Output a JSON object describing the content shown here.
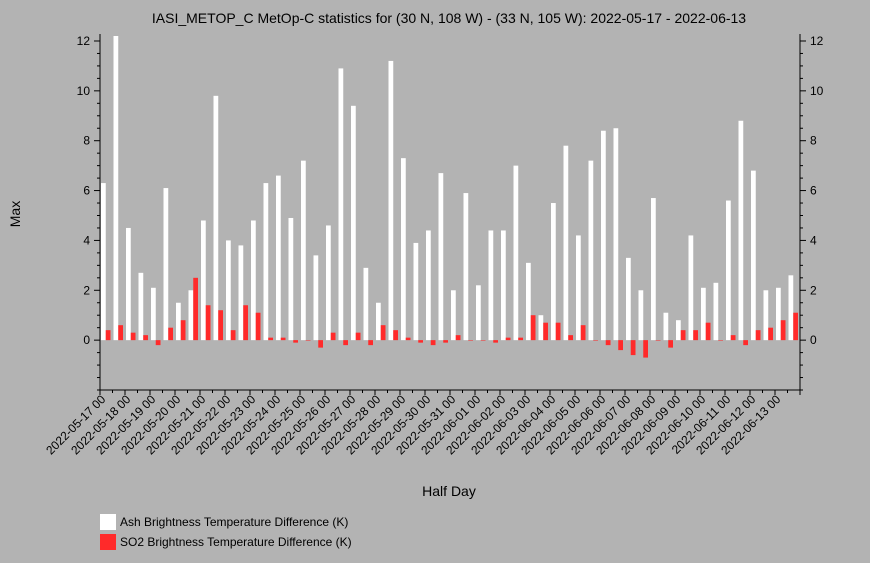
{
  "chart_data": {
    "type": "bar",
    "title": "IASI_METOP_C MetOp-C statistics for (30 N, 108 W) - (33 N, 105 W): 2022-05-17 - 2022-06-13",
    "xlabel": "Half Day",
    "ylabel": "Max",
    "ylim": [
      -2,
      12.2
    ],
    "y_ticks": [
      0,
      2,
      4,
      6,
      8,
      10,
      12
    ],
    "grid": false,
    "legend_position": "bottom-left",
    "x_tick_labels": [
      "2022-05-17 00",
      "2022-05-18 00",
      "2022-05-19 00",
      "2022-05-20 00",
      "2022-05-21 00",
      "2022-05-22 00",
      "2022-05-23 00",
      "2022-05-24 00",
      "2022-05-25 00",
      "2022-05-26 00",
      "2022-05-27 00",
      "2022-05-28 00",
      "2022-05-29 00",
      "2022-05-30 00",
      "2022-05-31 00",
      "2022-06-01 00",
      "2022-06-02 00",
      "2022-06-03 00",
      "2022-06-04 00",
      "2022-06-05 00",
      "2022-06-06 00",
      "2022-06-07 00",
      "2022-06-08 00",
      "2022-06-09 00",
      "2022-06-10 00",
      "2022-06-11 00",
      "2022-06-12 00",
      "2022-06-13 00"
    ],
    "series": [
      {
        "name": "Ash Brightness Temperature Difference (K)",
        "color": "#ffffff",
        "values": [
          6.3,
          12.2,
          4.5,
          2.7,
          2.1,
          6.1,
          1.5,
          2.0,
          4.8,
          9.8,
          4.0,
          3.8,
          4.8,
          6.3,
          6.6,
          4.9,
          7.2,
          3.4,
          4.6,
          10.9,
          9.4,
          2.9,
          1.5,
          11.2,
          7.3,
          3.9,
          4.4,
          6.7,
          2.0,
          5.9,
          2.2,
          4.4,
          4.4,
          7.0,
          3.1,
          1.0,
          5.5,
          7.8,
          4.2,
          7.2,
          8.4,
          8.5,
          3.3,
          2.0,
          5.7,
          1.1,
          0.8,
          4.2,
          2.1,
          2.3,
          5.6,
          8.8,
          6.8,
          2.0,
          2.1,
          2.6
        ]
      },
      {
        "name": "SO2 Brightness Temperature Difference (K)",
        "color": "#ff2a2a",
        "values": [
          0.4,
          0.6,
          0.3,
          0.2,
          -0.2,
          0.5,
          0.8,
          2.5,
          1.4,
          1.2,
          0.4,
          1.4,
          1.1,
          0.1,
          0.1,
          -0.1,
          0.0,
          -0.3,
          0.3,
          -0.2,
          0.3,
          -0.2,
          0.6,
          0.4,
          0.1,
          -0.1,
          -0.2,
          -0.1,
          0.2,
          0.0,
          0.0,
          -0.1,
          0.1,
          0.1,
          1.0,
          0.7,
          0.7,
          0.2,
          0.6,
          0.0,
          -0.2,
          -0.4,
          -0.6,
          -0.7,
          0.0,
          -0.3,
          0.4,
          0.4,
          0.7,
          0.0,
          0.2,
          -0.2,
          0.4,
          0.5,
          0.8,
          1.1
        ]
      }
    ]
  }
}
